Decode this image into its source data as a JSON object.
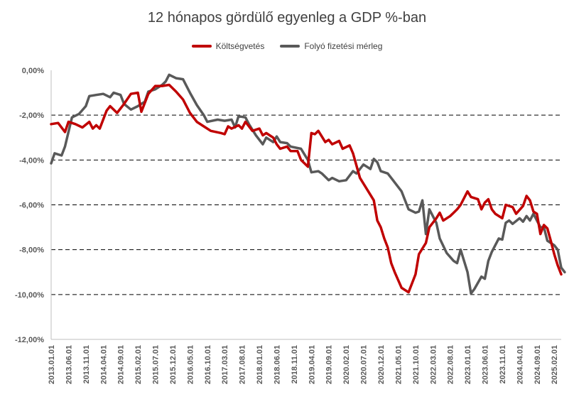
{
  "chart_data": {
    "type": "line",
    "title": "12 hónapos gördülő egyenleg  a GDP %-ban",
    "xlabel": "",
    "ylabel": "",
    "ylim": [
      -12,
      0
    ],
    "yticks": [
      0,
      -2,
      -4,
      -6,
      -8,
      -10,
      -12
    ],
    "ytick_labels": [
      "0,00%",
      "-2,00%",
      "-4,00%",
      "-6,00%",
      "-8,00%",
      "-10,00%",
      "-12,00%"
    ],
    "grid": "horizontal dashed",
    "legend_position": "top",
    "x_range": [
      "2013.01.01",
      "2025.04.01"
    ],
    "x_tick_labels": [
      "2013.01.01",
      "2013.06.01",
      "2013.11.01",
      "2014.04.01",
      "2014.09.01",
      "2015.02.01",
      "2015.07.01",
      "2015.12.01",
      "2016.05.01",
      "2016.10.01",
      "2017.03.01",
      "2017.08.01",
      "2018.01.01",
      "2018.06.01",
      "2018.11.01",
      "2019.04.01",
      "2019.09.01",
      "2020.02.01",
      "2020.07.01",
      "2020.12.01",
      "2021.05.01",
      "2021.10.01",
      "2022.03.01",
      "2022.08.01",
      "2023.01.01",
      "2023.06.01",
      "2023.11.01",
      "2024.04.01",
      "2024.09.01",
      "2025.02.01"
    ],
    "series": [
      {
        "name": "Költségvetés",
        "color": "#c00000",
        "points": [
          [
            "2013.01",
            -2.4
          ],
          [
            "2013.03",
            -2.35
          ],
          [
            "2013.05",
            -2.75
          ],
          [
            "2013.06",
            -2.3
          ],
          [
            "2013.08",
            -2.4
          ],
          [
            "2013.10",
            -2.55
          ],
          [
            "2013.12",
            -2.3
          ],
          [
            "2014.01",
            -2.6
          ],
          [
            "2014.02",
            -2.45
          ],
          [
            "2014.03",
            -2.6
          ],
          [
            "2014.05",
            -1.8
          ],
          [
            "2014.06",
            -1.6
          ],
          [
            "2014.08",
            -1.9
          ],
          [
            "2014.10",
            -1.5
          ],
          [
            "2014.12",
            -1.05
          ],
          [
            "2015.02",
            -1.0
          ],
          [
            "2015.03",
            -1.85
          ],
          [
            "2015.05",
            -1.05
          ],
          [
            "2015.07",
            -0.7
          ],
          [
            "2015.09",
            -0.7
          ],
          [
            "2015.11",
            -0.65
          ],
          [
            "2016.01",
            -0.95
          ],
          [
            "2016.03",
            -1.3
          ],
          [
            "2016.05",
            -1.9
          ],
          [
            "2016.07",
            -2.3
          ],
          [
            "2016.09",
            -2.5
          ],
          [
            "2016.11",
            -2.7
          ],
          [
            "2017.02",
            -2.8
          ],
          [
            "2017.03",
            -2.85
          ],
          [
            "2017.04",
            -2.5
          ],
          [
            "2017.05",
            -2.6
          ],
          [
            "2017.07",
            -2.45
          ],
          [
            "2017.08",
            -2.6
          ],
          [
            "2017.09",
            -2.3
          ],
          [
            "2017.11",
            -2.7
          ],
          [
            "2018.01",
            -2.6
          ],
          [
            "2018.02",
            -2.9
          ],
          [
            "2018.03",
            -2.8
          ],
          [
            "2018.05",
            -3.0
          ],
          [
            "2018.06",
            -3.3
          ],
          [
            "2018.07",
            -3.5
          ],
          [
            "2018.09",
            -3.4
          ],
          [
            "2018.10",
            -3.6
          ],
          [
            "2018.12",
            -3.6
          ],
          [
            "2019.01",
            -4.0
          ],
          [
            "2019.03",
            -4.3
          ],
          [
            "2019.04",
            -2.8
          ],
          [
            "2019.05",
            -2.85
          ],
          [
            "2019.06",
            -2.7
          ],
          [
            "2019.08",
            -3.2
          ],
          [
            "2019.09",
            -3.1
          ],
          [
            "2019.10",
            -3.3
          ],
          [
            "2019.12",
            -3.15
          ],
          [
            "2020.01",
            -3.5
          ],
          [
            "2020.03",
            -3.35
          ],
          [
            "2020.04",
            -3.7
          ],
          [
            "2020.06",
            -4.8
          ],
          [
            "2020.08",
            -5.3
          ],
          [
            "2020.10",
            -5.8
          ],
          [
            "2020.11",
            -6.7
          ],
          [
            "2020.12",
            -7.0
          ],
          [
            "2021.01",
            -7.5
          ],
          [
            "2021.02",
            -7.9
          ],
          [
            "2021.03",
            -8.6
          ],
          [
            "2021.04",
            -9.0
          ],
          [
            "2021.06",
            -9.7
          ],
          [
            "2021.08",
            -9.9
          ],
          [
            "2021.10",
            -9.1
          ],
          [
            "2021.11",
            -8.2
          ],
          [
            "2022.01",
            -7.7
          ],
          [
            "2022.02",
            -7.0
          ],
          [
            "2022.04",
            -6.6
          ],
          [
            "2022.05",
            -6.35
          ],
          [
            "2022.06",
            -6.7
          ],
          [
            "2022.08",
            -6.5
          ],
          [
            "2022.09",
            -6.35
          ],
          [
            "2022.10",
            -6.2
          ],
          [
            "2022.11",
            -6.0
          ],
          [
            "2023.01",
            -5.4
          ],
          [
            "2023.02",
            -5.65
          ],
          [
            "2023.04",
            -5.75
          ],
          [
            "2023.05",
            -6.2
          ],
          [
            "2023.06",
            -5.9
          ],
          [
            "2023.07",
            -5.75
          ],
          [
            "2023.08",
            -6.2
          ],
          [
            "2023.09",
            -6.4
          ],
          [
            "2023.11",
            -6.6
          ],
          [
            "2023.12",
            -6.0
          ],
          [
            "2024.02",
            -6.1
          ],
          [
            "2024.03",
            -6.4
          ],
          [
            "2024.05",
            -6.05
          ],
          [
            "2024.06",
            -5.6
          ],
          [
            "2024.07",
            -5.8
          ],
          [
            "2024.08",
            -6.3
          ],
          [
            "2024.09",
            -6.4
          ],
          [
            "2024.10",
            -7.3
          ],
          [
            "2024.11",
            -6.9
          ],
          [
            "2024.12",
            -7.05
          ],
          [
            "2025.01",
            -7.6
          ],
          [
            "2025.02",
            -8.2
          ],
          [
            "2025.03",
            -8.7
          ],
          [
            "2025.04",
            -9.1
          ]
        ]
      },
      {
        "name": "Folyó fizetési mérleg",
        "color": "#595959",
        "points": [
          [
            "2013.01",
            -4.15
          ],
          [
            "2013.02",
            -3.7
          ],
          [
            "2013.04",
            -3.8
          ],
          [
            "2013.05",
            -3.4
          ],
          [
            "2013.07",
            -2.1
          ],
          [
            "2013.09",
            -1.95
          ],
          [
            "2013.11",
            -1.6
          ],
          [
            "2013.12",
            -1.15
          ],
          [
            "2014.02",
            -1.1
          ],
          [
            "2014.04",
            -1.05
          ],
          [
            "2014.06",
            -1.2
          ],
          [
            "2014.07",
            -1.0
          ],
          [
            "2014.09",
            -1.1
          ],
          [
            "2014.10",
            -1.5
          ],
          [
            "2014.12",
            -1.75
          ],
          [
            "2015.02",
            -1.6
          ],
          [
            "2015.04",
            -1.4
          ],
          [
            "2015.05",
            -0.95
          ],
          [
            "2015.07",
            -0.85
          ],
          [
            "2015.09",
            -0.65
          ],
          [
            "2015.10",
            -0.5
          ],
          [
            "2015.11",
            -0.2
          ],
          [
            "2016.01",
            -0.35
          ],
          [
            "2016.03",
            -0.4
          ],
          [
            "2016.05",
            -1.0
          ],
          [
            "2016.07",
            -1.55
          ],
          [
            "2016.09",
            -2.0
          ],
          [
            "2016.10",
            -2.3
          ],
          [
            "2017.01",
            -2.2
          ],
          [
            "2017.03",
            -2.25
          ],
          [
            "2017.05",
            -2.2
          ],
          [
            "2017.06",
            -2.55
          ],
          [
            "2017.07",
            -2.05
          ],
          [
            "2017.09",
            -2.1
          ],
          [
            "2017.10",
            -2.4
          ],
          [
            "2017.12",
            -2.9
          ],
          [
            "2018.02",
            -3.3
          ],
          [
            "2018.03",
            -3.0
          ],
          [
            "2018.05",
            -3.2
          ],
          [
            "2018.06",
            -2.95
          ],
          [
            "2018.07",
            -3.2
          ],
          [
            "2018.09",
            -3.25
          ],
          [
            "2018.10",
            -3.4
          ],
          [
            "2019.01",
            -3.5
          ],
          [
            "2019.03",
            -4.0
          ],
          [
            "2019.04",
            -4.55
          ],
          [
            "2019.06",
            -4.5
          ],
          [
            "2019.07",
            -4.6
          ],
          [
            "2019.09",
            -4.9
          ],
          [
            "2019.10",
            -4.8
          ],
          [
            "2019.12",
            -4.95
          ],
          [
            "2020.02",
            -4.9
          ],
          [
            "2020.04",
            -4.5
          ],
          [
            "2020.05",
            -4.6
          ],
          [
            "2020.07",
            -4.2
          ],
          [
            "2020.09",
            -4.4
          ],
          [
            "2020.10",
            -3.95
          ],
          [
            "2020.11",
            -4.1
          ],
          [
            "2020.12",
            -4.5
          ],
          [
            "2021.02",
            -4.6
          ],
          [
            "2021.03",
            -4.8
          ],
          [
            "2021.04",
            -5.0
          ],
          [
            "2021.06",
            -5.4
          ],
          [
            "2021.08",
            -6.2
          ],
          [
            "2021.10",
            -6.35
          ],
          [
            "2021.11",
            -6.3
          ],
          [
            "2021.12",
            -5.8
          ],
          [
            "2022.01",
            -7.3
          ],
          [
            "2022.02",
            -6.2
          ],
          [
            "2022.04",
            -6.8
          ],
          [
            "2022.05",
            -7.5
          ],
          [
            "2022.07",
            -8.15
          ],
          [
            "2022.09",
            -8.5
          ],
          [
            "2022.10",
            -8.6
          ],
          [
            "2022.11",
            -8.0
          ],
          [
            "2023.01",
            -9.0
          ],
          [
            "2023.02",
            -9.95
          ],
          [
            "2023.03",
            -9.75
          ],
          [
            "2023.05",
            -9.2
          ],
          [
            "2023.06",
            -9.3
          ],
          [
            "2023.07",
            -8.5
          ],
          [
            "2023.08",
            -8.1
          ],
          [
            "2023.10",
            -7.5
          ],
          [
            "2023.11",
            -7.55
          ],
          [
            "2023.12",
            -6.8
          ],
          [
            "2024.01",
            -6.7
          ],
          [
            "2024.02",
            -6.85
          ],
          [
            "2024.04",
            -6.6
          ],
          [
            "2024.05",
            -6.75
          ],
          [
            "2024.06",
            -6.5
          ],
          [
            "2024.07",
            -6.7
          ],
          [
            "2024.08",
            -6.4
          ],
          [
            "2024.10",
            -7.0
          ],
          [
            "2024.11",
            -7.0
          ],
          [
            "2024.12",
            -7.6
          ],
          [
            "2025.02",
            -7.8
          ],
          [
            "2025.03",
            -8.0
          ],
          [
            "2025.04",
            -8.8
          ],
          [
            "2025.05",
            -9.0
          ]
        ]
      }
    ]
  }
}
